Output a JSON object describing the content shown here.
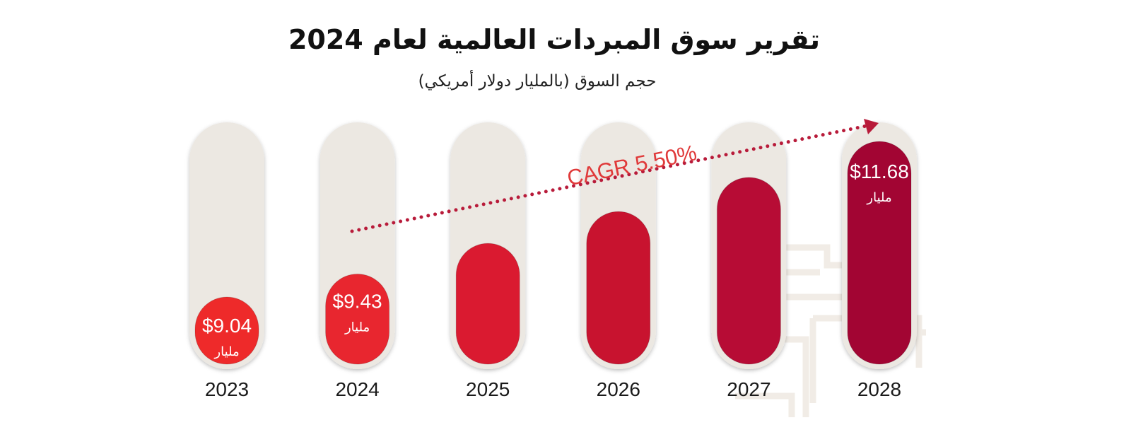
{
  "title": "تقرير سوق المبردات العالمية لعام 2024",
  "subtitle": "حجم السوق (بالمليار دولار أمريكي)",
  "chart_data": {
    "type": "bar",
    "title": "تقرير سوق المبردات العالمية لعام 2024",
    "subtitle": "حجم السوق (بالمليار دولار أمريكي)",
    "categories": [
      "2023",
      "2024",
      "2025",
      "2026",
      "2027",
      "2028"
    ],
    "values": [
      9.04,
      9.43,
      9.95,
      10.49,
      11.07,
      11.68
    ],
    "value_labels": [
      "$9.04",
      "$9.43",
      null,
      null,
      null,
      "$11.68"
    ],
    "unit_label": "مليار",
    "annotation": "CAGR 5.50%",
    "ylim": [
      7.9,
      11.68
    ],
    "grid": false,
    "colors": [
      "#ee2a2a",
      "#e8262f",
      "#da1a30",
      "#c8132f",
      "#b70c35",
      "#a20533"
    ],
    "track_color": "#ece8e2",
    "annotation_color": "#e03a3a",
    "arrow_color": "#b81b3a"
  }
}
